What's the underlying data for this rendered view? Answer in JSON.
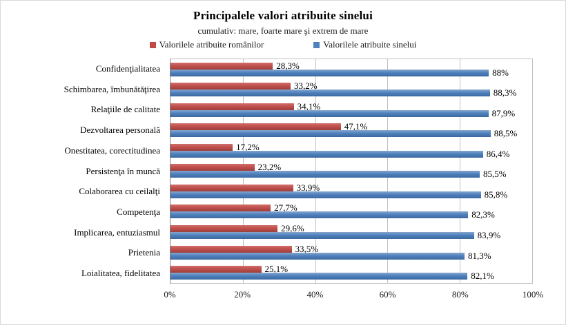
{
  "chart": {
    "title": "Principalele valori atribuite sinelui",
    "subtitle": "cumulativ: mare, foarte mare şi extrem de mare"
  },
  "chart_data": {
    "type": "bar",
    "orientation": "horizontal",
    "title": "Principalele valori atribuite sinelui",
    "subtitle": "cumulativ: mare, foarte mare şi extrem de mare",
    "categories": [
      "Confidenţialitatea",
      "Schimbarea, îmbunătăţirea",
      "Relaţiile de calitate",
      "Dezvoltarea personală",
      "Onestitatea, corectitudinea",
      "Persistenţa în muncă",
      "Colaborarea cu ceilalţi",
      "Competenţa",
      "Implicarea, entuziasmul",
      "Prietenia",
      "Loialitatea, fidelitatea"
    ],
    "series": [
      {
        "name": "Valorilele atribuite românilor",
        "color": "#be4b48",
        "values": [
          28.3,
          33.2,
          34.1,
          47.1,
          17.2,
          23.2,
          33.9,
          27.7,
          29.6,
          33.5,
          25.1
        ],
        "labels": [
          "28,3%",
          "33,2%",
          "34,1%",
          "47,1%",
          "17,2%",
          "23,2%",
          "33,9%",
          "27,7%",
          "29,6%",
          "33,5%",
          "25,1%"
        ]
      },
      {
        "name": "Valorilele atribuite sinelui",
        "color": "#4f81bd",
        "values": [
          88,
          88.3,
          87.9,
          88.5,
          86.4,
          85.5,
          85.8,
          82.3,
          83.9,
          81.3,
          82.1
        ],
        "labels": [
          "88%",
          "88,3%",
          "87,9%",
          "88,5%",
          "86,4%",
          "85,5%",
          "85,8%",
          "82,3%",
          "83,9%",
          "81,3%",
          "82,1%"
        ]
      }
    ],
    "xlim": [
      0,
      100
    ],
    "x_ticks": [
      "0%",
      "20%",
      "40%",
      "60%",
      "80%",
      "100%"
    ],
    "grid": true,
    "legend_position": "top"
  }
}
